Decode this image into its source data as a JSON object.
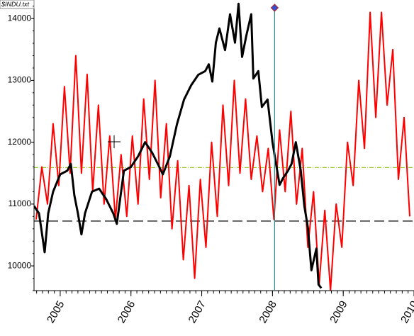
{
  "chart_data": {
    "type": "line",
    "title": "$INDU.txt",
    "xlim": [
      2004.63,
      2010.0
    ],
    "ylim": [
      9600,
      14300
    ],
    "xticks": [
      2005,
      2006,
      2007,
      2008,
      2009,
      2010
    ],
    "yticks": [
      10000,
      11000,
      12000,
      13000,
      14000
    ],
    "hlines": [
      {
        "value": 11590,
        "color": "#9acd32",
        "style": "dashdot"
      },
      {
        "value": 10725,
        "color": "#000000",
        "style": "dashed"
      }
    ],
    "vline": {
      "value": 2008.03,
      "color": "#2e8b8b",
      "marker_color": "#3050d0"
    },
    "series": [
      {
        "color": "#ff0000",
        "x": [
          2004.66,
          2004.74,
          2004.82,
          2004.9,
          2004.98,
          2005.06,
          2005.14,
          2005.22,
          2005.3,
          2005.38,
          2005.46,
          2005.54,
          2005.62,
          2005.7,
          2005.78,
          2005.86,
          2005.94,
          2006.02,
          2006.1,
          2006.18,
          2006.26,
          2006.34,
          2006.42,
          2006.5,
          2006.58,
          2006.66,
          2006.74,
          2006.82,
          2006.9,
          2006.98,
          2007.06,
          2007.14,
          2007.22,
          2007.3,
          2007.38,
          2007.46,
          2007.54,
          2007.62,
          2007.7,
          2007.78,
          2007.86,
          2007.94,
          2008.02,
          2008.1,
          2008.18,
          2008.26,
          2008.34,
          2008.42,
          2008.5,
          2008.58,
          2008.66,
          2008.74,
          2008.82,
          2008.9,
          2008.98,
          2009.06,
          2009.14,
          2009.22,
          2009.3,
          2009.38,
          2009.46,
          2009.54,
          2009.62,
          2009.7,
          2009.78,
          2009.86,
          2009.94
        ],
        "values": [
          10750,
          11600,
          11000,
          12300,
          11300,
          12900,
          11500,
          13400,
          11500,
          13100,
          11200,
          12600,
          11000,
          12100,
          10750,
          11800,
          10800,
          12100,
          11000,
          12700,
          11400,
          13000,
          11100,
          12300,
          10600,
          11700,
          10100,
          11300,
          9800,
          11400,
          10300,
          12000,
          10800,
          12600,
          11300,
          13000,
          11500,
          12700,
          11400,
          12100,
          11200,
          11900,
          10750,
          12200,
          11200,
          12500,
          11000,
          11900,
          10300,
          11200,
          9700,
          10900,
          9600,
          11000,
          10300,
          12000,
          11300,
          13000,
          11900,
          14100,
          12400,
          14100,
          12600,
          13500,
          11400,
          12400,
          10800
        ]
      },
      {
        "color": "#000000",
        "x": [
          2004.63,
          2004.7,
          2004.73,
          2004.78,
          2004.83,
          2004.9,
          2005.0,
          2005.1,
          2005.15,
          2005.2,
          2005.25,
          2005.3,
          2005.35,
          2005.45,
          2005.55,
          2005.65,
          2005.75,
          2005.8,
          2005.9,
          2006.0,
          2006.1,
          2006.2,
          2006.3,
          2006.4,
          2006.45,
          2006.55,
          2006.65,
          2006.75,
          2006.85,
          2006.95,
          2007.05,
          2007.1,
          2007.15,
          2007.2,
          2007.25,
          2007.33,
          2007.4,
          2007.47,
          2007.52,
          2007.57,
          2007.63,
          2007.7,
          2007.73,
          2007.8,
          2007.85,
          2007.93,
          2008.0,
          2008.05,
          2008.1,
          2008.15,
          2008.22,
          2008.27,
          2008.33,
          2008.4,
          2008.45,
          2008.5,
          2008.55,
          2008.62,
          2008.65,
          2008.69
        ],
        "values": [
          10970,
          10850,
          10620,
          10220,
          10850,
          11200,
          11480,
          11540,
          11650,
          11140,
          10850,
          10510,
          10850,
          11200,
          11250,
          11080,
          10850,
          10680,
          11540,
          11600,
          11770,
          12000,
          11830,
          11600,
          11480,
          11770,
          12290,
          12690,
          12920,
          13090,
          13150,
          13260,
          12980,
          13610,
          13840,
          13490,
          14070,
          13610,
          14240,
          13380,
          13720,
          14070,
          13030,
          13150,
          12570,
          12690,
          12000,
          11650,
          11310,
          11420,
          11540,
          11650,
          12000,
          11540,
          10970,
          10620,
          9930,
          10280,
          9700,
          9640
        ]
      }
    ]
  }
}
